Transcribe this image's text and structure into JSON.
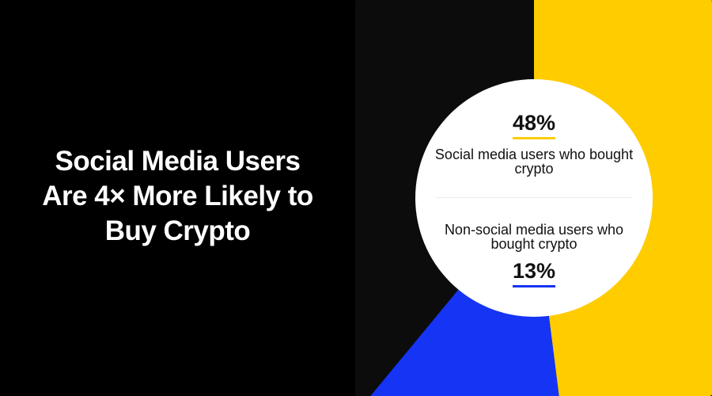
{
  "title": "Social Media Users Are 4× More Likely to Buy Crypto",
  "colors": {
    "background": "#000000",
    "social": "#FFCC00",
    "non_social": "#1634F4",
    "rest": "#0C0C0C",
    "center": "#FFFFFF"
  },
  "chart_data": {
    "type": "pie",
    "title": "Social Media Users Are 4× More Likely to Buy Crypto",
    "slices": [
      {
        "label": "Social media users who bought crypto",
        "value": 48,
        "display": "48%",
        "color": "#FFCC00"
      },
      {
        "label": "Non-social media users who bought crypto",
        "value": 13,
        "display": "13%",
        "color": "#1634F4"
      },
      {
        "label": "",
        "value": 39,
        "color": "#0C0C0C"
      }
    ],
    "start_angle": "top",
    "direction": "clockwise",
    "center_hole": true
  }
}
